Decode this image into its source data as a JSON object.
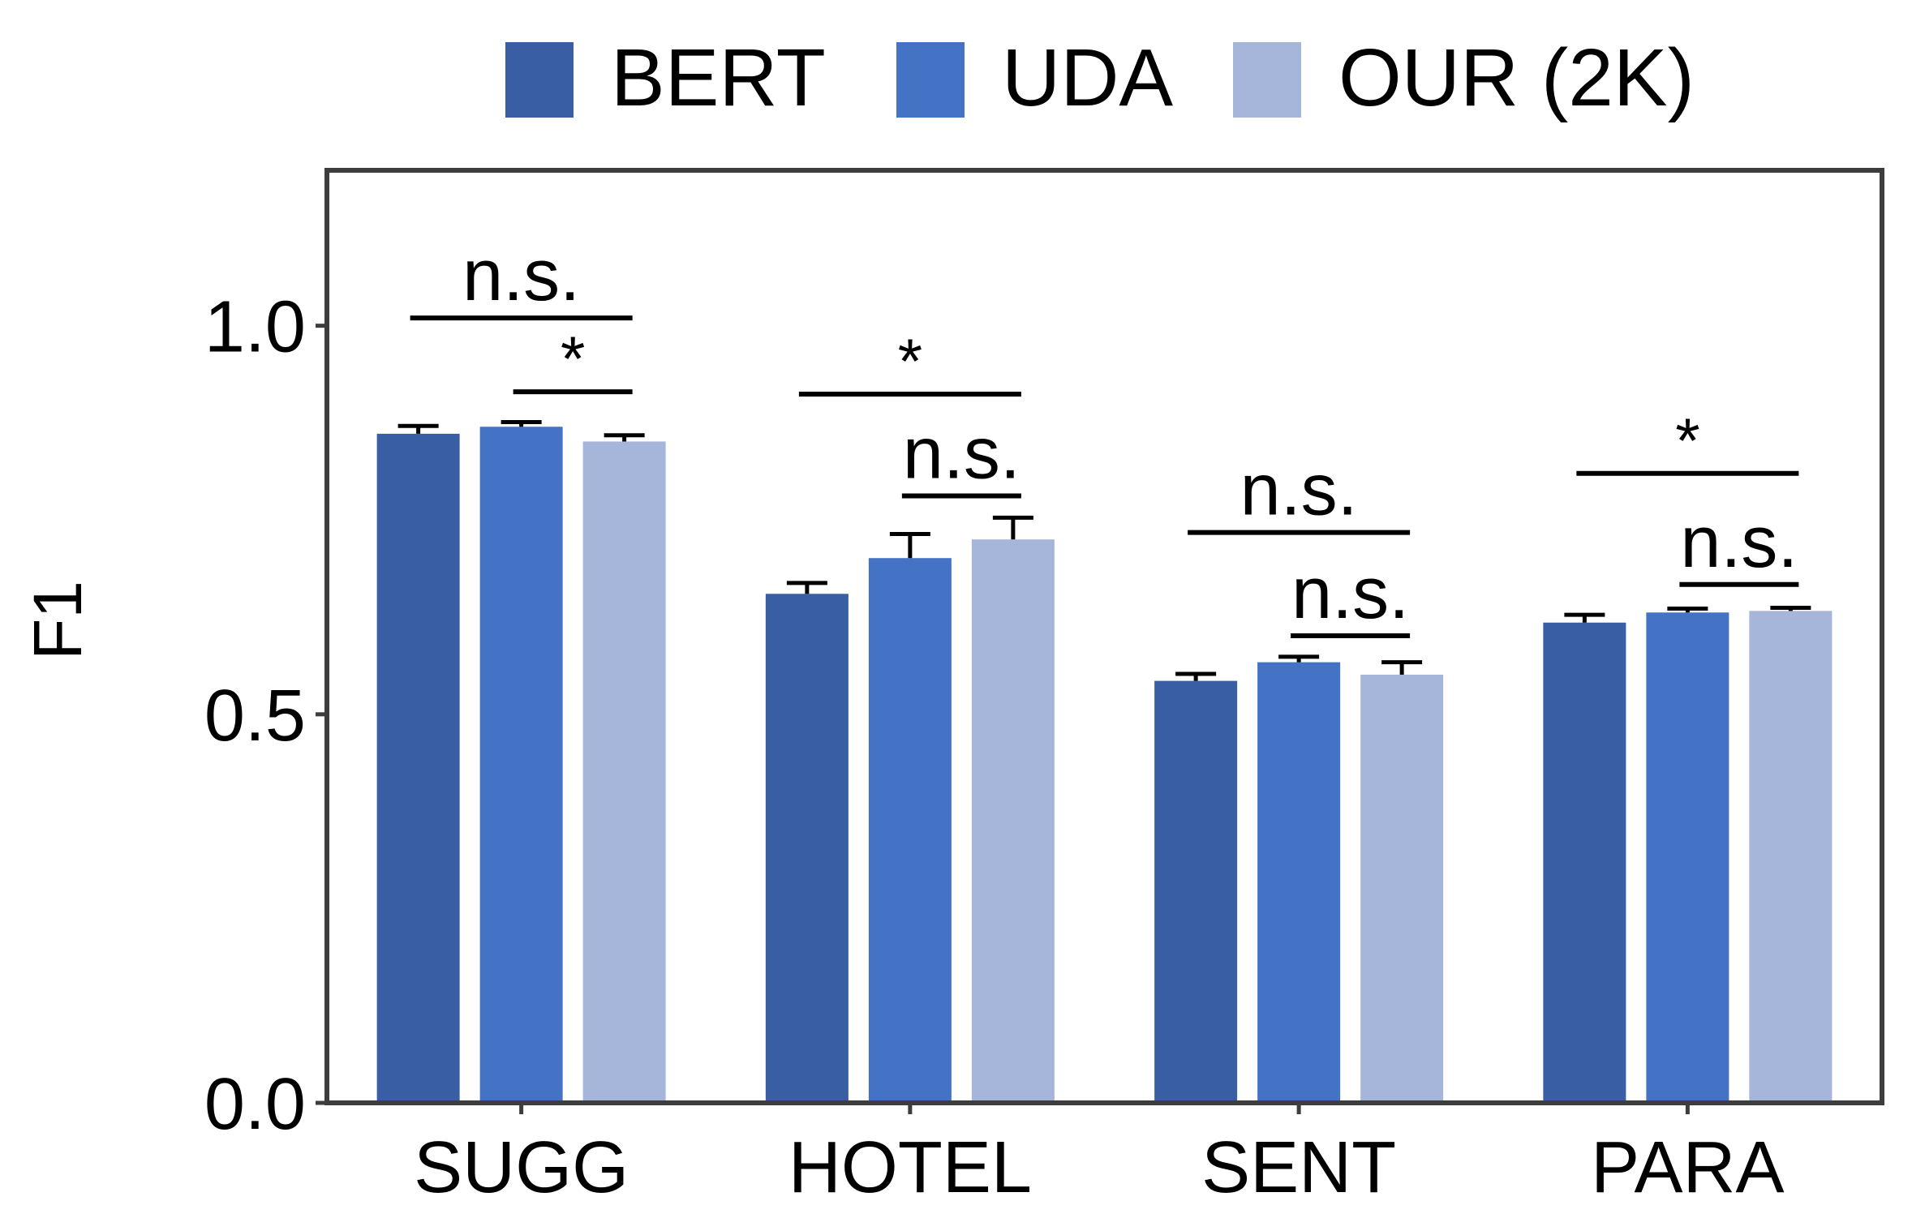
{
  "chart_data": {
    "type": "bar",
    "title": "",
    "xlabel": "",
    "ylabel": "F1",
    "ylim": [
      0,
      1.2
    ],
    "yticks": [
      0.0,
      0.5,
      1.0
    ],
    "ytick_labels": [
      "0.0",
      "0.5",
      "1.0"
    ],
    "grid": false,
    "legend_position": "top",
    "categories": [
      "SUGG",
      "HOTEL",
      "SENT",
      "PARA"
    ],
    "series": [
      {
        "name": "BERT",
        "color": "#3a5ea3",
        "values": [
          0.861,
          0.655,
          0.543,
          0.618
        ],
        "errors": [
          0.01,
          0.014,
          0.009,
          0.01
        ]
      },
      {
        "name": "UDA",
        "color": "#4472c4",
        "values": [
          0.87,
          0.701,
          0.567,
          0.631
        ],
        "errors": [
          0.006,
          0.031,
          0.007,
          0.005
        ]
      },
      {
        "name": "OUR (2K)",
        "color": "#a6b5da",
        "values": [
          0.851,
          0.725,
          0.551,
          0.633
        ],
        "errors": [
          0.008,
          0.028,
          0.016,
          0.004
        ]
      }
    ],
    "annotations": [
      {
        "label": "n.s.",
        "category": 0,
        "from_series": 0,
        "to_series": 2,
        "y": 1.01
      },
      {
        "label": "*",
        "category": 0,
        "from_series": 1,
        "to_series": 2,
        "y": 0.915
      },
      {
        "label": "*",
        "category": 1,
        "from_series": 0,
        "to_series": 2,
        "y": 0.912
      },
      {
        "label": "n.s.",
        "category": 1,
        "from_series": 1,
        "to_series": 2,
        "y": 0.781
      },
      {
        "label": "n.s.",
        "category": 2,
        "from_series": 0,
        "to_series": 2,
        "y": 0.734
      },
      {
        "label": "n.s.",
        "category": 2,
        "from_series": 1,
        "to_series": 2,
        "y": 0.601
      },
      {
        "label": "*",
        "category": 3,
        "from_series": 0,
        "to_series": 2,
        "y": 0.81
      },
      {
        "label": "n.s.",
        "category": 3,
        "from_series": 1,
        "to_series": 2,
        "y": 0.667
      }
    ]
  }
}
